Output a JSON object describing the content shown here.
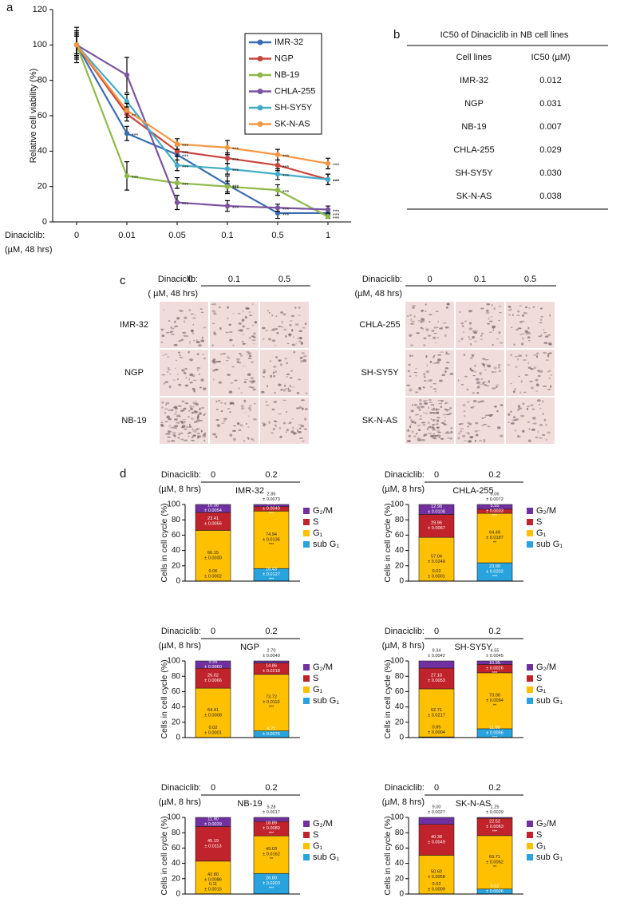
{
  "panel_labels": [
    "a",
    "b",
    "c",
    "d"
  ],
  "chart_data": [
    {
      "type": "line",
      "ylabel": "Relative cell viability (%)",
      "x_label": "Dinaciclib:",
      "x_unit": "(µM, 48 hrs)",
      "categories": [
        "0",
        "0.01",
        "0.05",
        "0.1",
        "0.5",
        "1"
      ],
      "ylim": [
        0,
        120
      ],
      "yticks": [
        0,
        20,
        40,
        60,
        80,
        100,
        120
      ],
      "legend": "upper right",
      "series": [
        {
          "name": "IMR-32",
          "color": "#3b6db3",
          "values": [
            100,
            50,
            38,
            21,
            5,
            5
          ],
          "errors": [
            6,
            4,
            3,
            5,
            3,
            2
          ],
          "sig": [
            null,
            "***",
            "***",
            "***",
            "***",
            "***"
          ]
        },
        {
          "name": "NGP",
          "color": "#c8453f",
          "values": [
            100,
            61,
            40,
            36,
            32,
            24
          ],
          "errors": [
            5,
            4,
            3,
            3,
            3,
            3
          ],
          "sig": [
            null,
            "**",
            "***",
            "***",
            "***",
            "***"
          ]
        },
        {
          "name": "NB-19",
          "color": "#8fba4a",
          "values": [
            100,
            26,
            22,
            20,
            18,
            3
          ],
          "errors": [
            8,
            8,
            3,
            3,
            3,
            1
          ],
          "sig": [
            null,
            "***",
            "***",
            "***",
            "***",
            "***"
          ]
        },
        {
          "name": "CHLA-255",
          "color": "#7b53a1",
          "values": [
            100,
            83,
            11,
            9,
            8,
            7
          ],
          "errors": [
            10,
            10,
            4,
            3,
            2,
            2
          ],
          "sig": [
            null,
            null,
            "***",
            "***",
            "***",
            "***"
          ]
        },
        {
          "name": "SH-SY5Y",
          "color": "#43adc9",
          "values": [
            100,
            68,
            32,
            30,
            27,
            24
          ],
          "errors": [
            7,
            4,
            3,
            3,
            3,
            3
          ],
          "sig": [
            null,
            null,
            "***",
            "***",
            "***",
            "***"
          ]
        },
        {
          "name": "SK-N-AS",
          "color": "#f59844",
          "values": [
            100,
            63,
            44,
            42,
            38,
            33
          ],
          "errors": [
            5,
            4,
            3,
            4,
            3,
            3
          ],
          "sig": [
            null,
            null,
            "***",
            "***",
            "***",
            "***"
          ]
        }
      ]
    },
    {
      "type": "stacked_bar",
      "title": "IMR-32",
      "x_label": "Dinaciclib:",
      "x_unit": "(µM, 8 hrs)",
      "ylabel": "Cells in cell cycle (%)",
      "categories": [
        "0",
        "0.2"
      ],
      "ylim": [
        0,
        100
      ],
      "yticks": [
        0,
        20,
        40,
        60,
        80,
        100
      ],
      "series": [
        {
          "name": "sub G₁",
          "color": "#29a3dd",
          "values": [
            0.06,
            16.43
          ],
          "value_labels": [
            "0.06\n± 0.0002",
            "16.43\n± 0.0127\n***"
          ]
        },
        {
          "name": "G₁",
          "color": "#ffc000",
          "values": [
            66.15,
            74.94
          ],
          "value_labels": [
            "66.15\n± 0.0030",
            "74.94\n± 0.0136\n***"
          ]
        },
        {
          "name": "S",
          "color": "#c0232b",
          "values": [
            23.41,
            5.78
          ],
          "value_labels": [
            "23.41\n± 0.0056",
            "5.78\n± 0.0040\n***"
          ]
        },
        {
          "name": "G₂/M",
          "color": "#7030a0",
          "values": [
            10.38,
            2.85
          ],
          "value_labels": [
            "10.38\n± 0.0054",
            "2.85\n± 0.0073"
          ]
        }
      ]
    },
    {
      "type": "stacked_bar",
      "title": "CHLA-255",
      "x_label": "Dinaciclib:",
      "x_unit": "(µM, 8 hrs)",
      "ylabel": "Cells in cell cycle (%)",
      "categories": [
        "0",
        "0.2"
      ],
      "ylim": [
        0,
        100
      ],
      "yticks": [
        0,
        20,
        40,
        60,
        80,
        100
      ],
      "series": [
        {
          "name": "sub G₁",
          "color": "#29a3dd",
          "values": [
            0.02,
            23.9
          ],
          "value_labels": [
            "0.02\n± 0.0001",
            "23.90\n± 0.0202\n***"
          ]
        },
        {
          "name": "G₁",
          "color": "#ffc000",
          "values": [
            57.04,
            64.49
          ],
          "value_labels": [
            "57.04\n± 0.0249",
            "64.49\n± 0.0187\n**"
          ]
        },
        {
          "name": "S",
          "color": "#c0232b",
          "values": [
            29.96,
            5.55
          ],
          "value_labels": [
            "29.96\n± 0.0067",
            "5.55\n± 0.0033\n***"
          ]
        },
        {
          "name": "G₂/M",
          "color": "#7030a0",
          "values": [
            12.98,
            6.06
          ],
          "value_labels": [
            "12.98\n± 0.0108",
            "6.06\n± 0.0072"
          ]
        }
      ]
    },
    {
      "type": "stacked_bar",
      "title": "NGP",
      "x_label": "Dinaciclib:",
      "x_unit": "(µM, 8 hrs)",
      "ylabel": "Cells in cell cycle (%)",
      "categories": [
        "0",
        "0.2"
      ],
      "ylim": [
        0,
        100
      ],
      "yticks": [
        0,
        20,
        40,
        60,
        80,
        100
      ],
      "series": [
        {
          "name": "sub G₁",
          "color": "#29a3dd",
          "values": [
            0.02,
            8.72
          ],
          "value_labels": [
            "0.02\n± 0.0001",
            "8.72\n± 0.0076\n***"
          ]
        },
        {
          "name": "G₁",
          "color": "#ffc000",
          "values": [
            64.41,
            73.72
          ],
          "value_labels": [
            "64.41\n± 0.0008",
            "73.72\n± 0.0110\n***"
          ]
        },
        {
          "name": "S",
          "color": "#c0232b",
          "values": [
            26.02,
            14.86
          ],
          "value_labels": [
            "26.02\n± 0.0066",
            "14.86\n± 0.0218"
          ]
        },
        {
          "name": "G₂/M",
          "color": "#7030a0",
          "values": [
            9.55,
            2.7
          ],
          "value_labels": [
            "9.55\n± 0.0060",
            "2.70\n± 0.0049"
          ]
        }
      ]
    },
    {
      "type": "stacked_bar",
      "title": "SH-SY5Y",
      "x_label": "Dinaciclib:",
      "x_unit": "(µM, 8 hrs)",
      "ylabel": "Cells in cell cycle (%)",
      "categories": [
        "0",
        "0.2"
      ],
      "ylim": [
        0,
        100
      ],
      "yticks": [
        0,
        20,
        40,
        60,
        80,
        100
      ],
      "series": [
        {
          "name": "sub G₁",
          "color": "#29a3dd",
          "values": [
            0.85,
            11.5
          ],
          "value_labels": [
            "0.85\n± 0.0004",
            "11.50\n± 0.0066\n***"
          ]
        },
        {
          "name": "G₁",
          "color": "#ffc000",
          "values": [
            62.71,
            73.0
          ],
          "value_labels": [
            "62.71\n± 0.0217",
            "73.00\n± 0.0094\n**"
          ]
        },
        {
          "name": "S",
          "color": "#c0232b",
          "values": [
            27.1,
            10.95
          ],
          "value_labels": [
            "27.10\n± 0.0053",
            "10.95\n± 0.0026\n***"
          ]
        },
        {
          "name": "G₂/M",
          "color": "#7030a0",
          "values": [
            9.34,
            4.55
          ],
          "value_labels": [
            "9.34\n± 0.0042",
            "4.55\n± 0.0045"
          ]
        }
      ]
    },
    {
      "type": "stacked_bar",
      "title": "NB-19",
      "x_label": "Dinaciclib:",
      "x_unit": "(µM, 8 hrs)",
      "ylabel": "Cells in cell cycle (%)",
      "categories": [
        "0",
        "0.2"
      ],
      "ylim": [
        0,
        100
      ],
      "yticks": [
        0,
        20,
        40,
        60,
        80,
        100
      ],
      "series": [
        {
          "name": "sub G₁",
          "color": "#29a3dd",
          "values": [
            0.11,
            26.8
          ],
          "value_labels": [
            "0.11\n± 0.0015",
            "26.80\n± 0.0203\n***"
          ]
        },
        {
          "name": "G₁",
          "color": "#ffc000",
          "values": [
            42.8,
            49.03
          ],
          "value_labels": [
            "42.80\n± 0.0086",
            "49.03\n± 0.0162\n**"
          ]
        },
        {
          "name": "S",
          "color": "#c0232b",
          "values": [
            45.19,
            18.89
          ],
          "value_labels": [
            "45.19\n± 0.0113",
            "18.89\n± 0.0080\n***"
          ]
        },
        {
          "name": "G₂/M",
          "color": "#7030a0",
          "values": [
            11.9,
            5.28
          ],
          "value_labels": [
            "11.90\n± 0.0039",
            "5.28\n± 0.0017"
          ]
        }
      ]
    },
    {
      "type": "stacked_bar",
      "title": "SK-N-AS",
      "x_label": "Dinaciclib:",
      "x_unit": "(µM, 8 hrs)",
      "ylabel": "Cells in cell cycle (%)",
      "categories": [
        "0",
        "0.2"
      ],
      "ylim": [
        0,
        100
      ],
      "yticks": [
        0,
        20,
        40,
        60,
        80,
        100
      ],
      "series": [
        {
          "name": "sub G₁",
          "color": "#29a3dd",
          "values": [
            0.02,
            6.52
          ],
          "value_labels": [
            "0.02\n± 0.0009",
            "6.52\n± 0.0026\n***"
          ]
        },
        {
          "name": "G₁",
          "color": "#ffc000",
          "values": [
            50.6,
            69.71
          ],
          "value_labels": [
            "50.60\n± 0.0058",
            "69.71\n± 0.0062\n**"
          ]
        },
        {
          "name": "S",
          "color": "#c0232b",
          "values": [
            40.38,
            22.52
          ],
          "value_labels": [
            "40.38\n± 0.0049",
            "22.52\n± 0.0063\n***"
          ]
        },
        {
          "name": "G₂/M",
          "color": "#7030a0",
          "values": [
            9.0,
            1.25
          ],
          "value_labels": [
            "9.00\n± 0.0027",
            "1.25\n± 0.0029"
          ]
        }
      ]
    }
  ],
  "table": {
    "title": "IC50 of Dinaciclib in NB cell lines",
    "columns": [
      "Cell lines",
      "IC50 (µM)"
    ],
    "rows": [
      [
        "IMR-32",
        "0.012"
      ],
      [
        "NGP",
        "0.031"
      ],
      [
        "NB-19",
        "0.007"
      ],
      [
        "CHLA-255",
        "0.029"
      ],
      [
        "SH-SY5Y",
        "0.030"
      ],
      [
        "SK-N-AS",
        "0.038"
      ]
    ]
  },
  "images": [
    {
      "header": "Dinaciclib:",
      "unit": "( µM, 48 hrs)",
      "concentrations": [
        "0",
        "0.1",
        "0.5"
      ],
      "rows": [
        "IMR-32",
        "NGP",
        "NB-19"
      ]
    },
    {
      "header": "Dinaciclib:",
      "unit": "(µM, 48 hrs)",
      "concentrations": [
        "0",
        "0.1",
        "0.5"
      ],
      "rows": [
        "CHLA-255",
        "SH-SY5Y",
        "SK-N-AS"
      ]
    }
  ]
}
